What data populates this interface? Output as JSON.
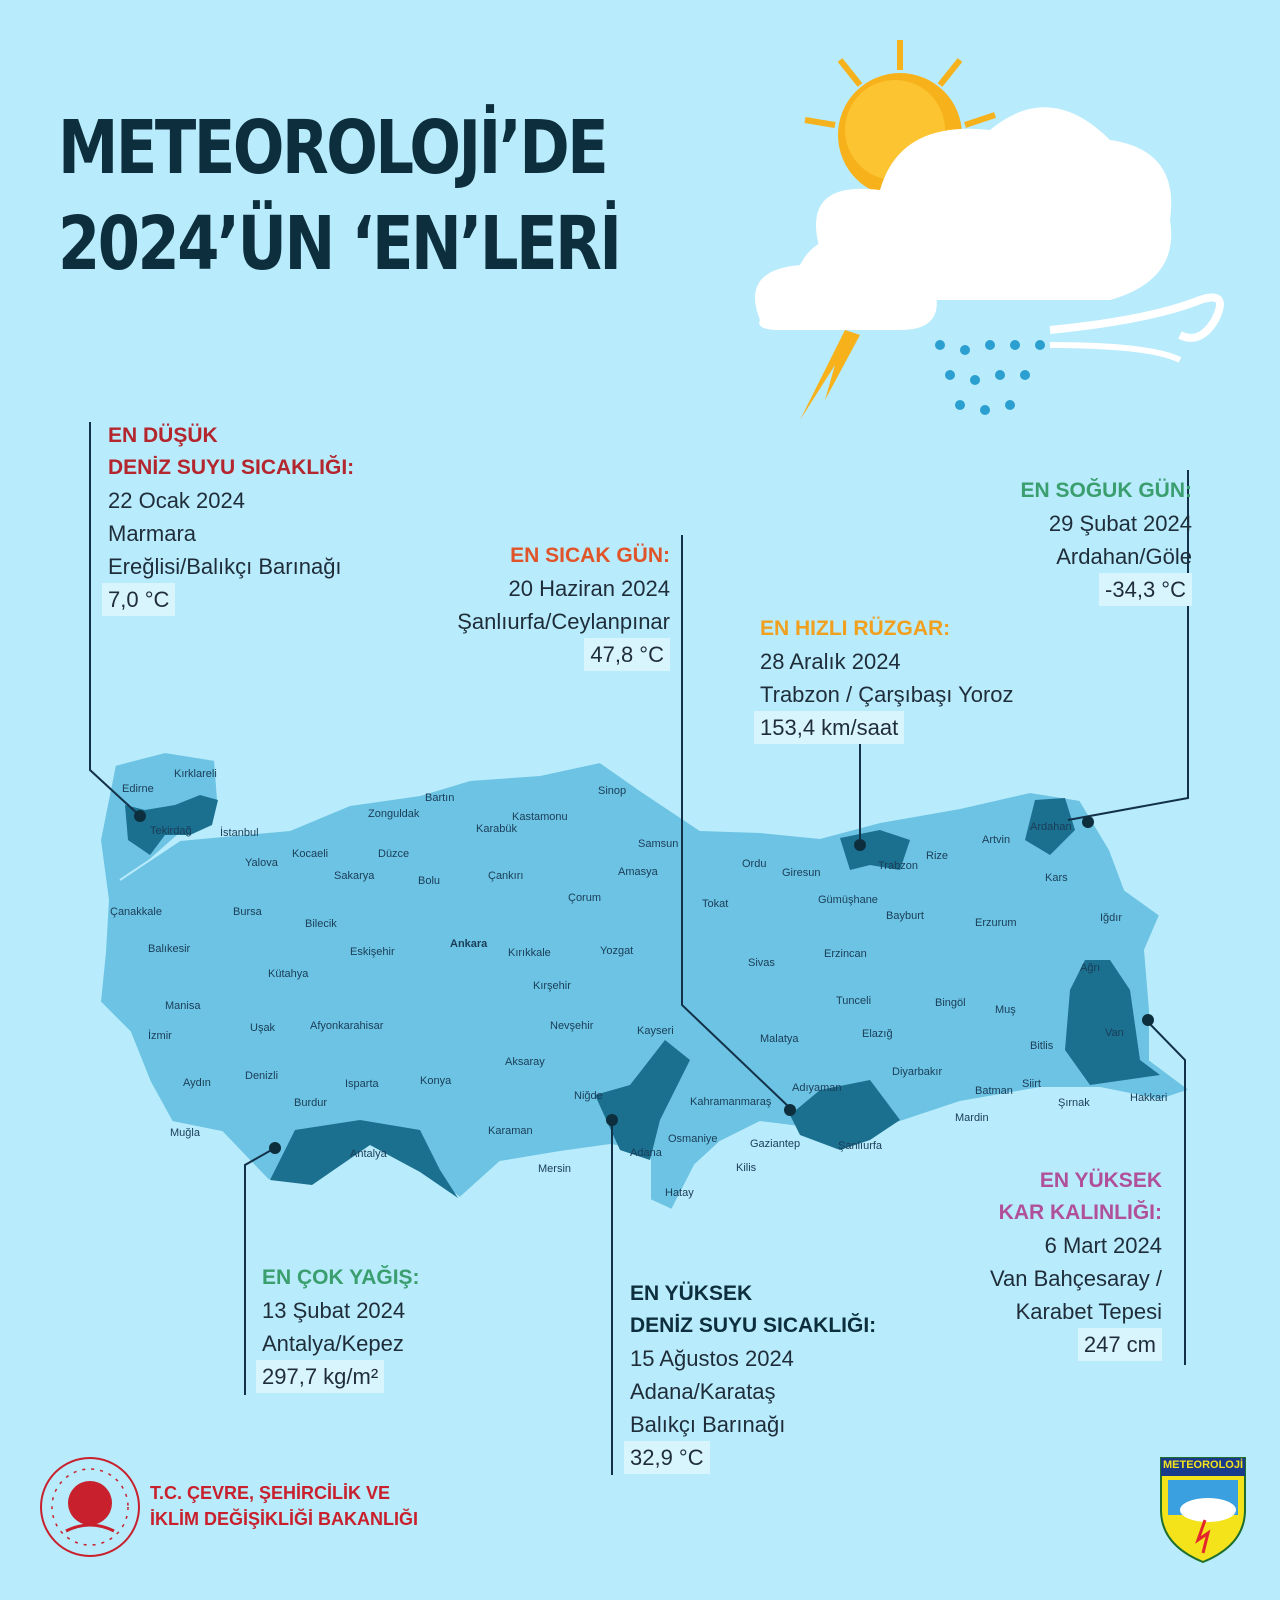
{
  "title": {
    "line1": "METEOROLOJİ’DE",
    "line2": "2024’ÜN ‘EN’LERİ"
  },
  "colors": {
    "background": "#b8ebfb",
    "map": "#6cc3e3",
    "highlight": "#1b6f8f",
    "red_heading": "#b3262e",
    "green_heading": "#3a9e6f",
    "orange_heading": "#f0a01e",
    "purple_heading": "#b0509a"
  },
  "records": [
    {
      "heading1": "EN DÜŞÜK",
      "heading2": "DENİZ SUYU SICAKLIĞI:",
      "date": "22 Ocak 2024",
      "place1": "Marmara",
      "place2": "Ereğlisi/Balıkçı Barınağı",
      "value": "7,0 °C"
    },
    {
      "heading": "EN SICAK GÜN:",
      "date": "20 Haziran 2024",
      "place": "Şanlıurfa/Ceylanpınar",
      "value": "47,8 °C"
    },
    {
      "heading": "EN SOĞUK GÜN:",
      "date": "29 Şubat 2024",
      "place": "Ardahan/Göle",
      "value": "-34,3 °C"
    },
    {
      "heading": "EN HIZLI RÜZGAR:",
      "date": "28 Aralık 2024",
      "place": "Trabzon / Çarşıbaşı Yoroz",
      "value": "153,4 km/saat"
    },
    {
      "heading": "EN ÇOK YAĞIŞ:",
      "date": "13 Şubat 2024",
      "place": "Antalya/Kepez",
      "value": "297,7 kg/m²"
    },
    {
      "heading1": "EN YÜKSEK",
      "heading2": "DENİZ SUYU SICAKLIĞI:",
      "date": "15 Ağustos 2024",
      "place1": "Adana/Karataş",
      "place2": "Balıkçı Barınağı",
      "value": "32,9 °C"
    },
    {
      "heading1": "EN YÜKSEK",
      "heading2": "KAR KALINLIĞI:",
      "date": "6 Mart 2024",
      "place1": "Van Bahçesaray /",
      "place2": "Karabet Tepesi",
      "value": "247 cm"
    }
  ],
  "cities": [
    "Edirne",
    "Kırklareli",
    "Tekirdağ",
    "İstanbul",
    "Yalova",
    "Kocaeli",
    "Sakarya",
    "Düzce",
    "Bolu",
    "Zonguldak",
    "Bartın",
    "Karabük",
    "Kastamonu",
    "Sinop",
    "Samsun",
    "Amasya",
    "Çorum",
    "Çankırı",
    "Ankara",
    "Kırıkkale",
    "Yozgat",
    "Çanakkale",
    "Bursa",
    "Bilecik",
    "Eskişehir",
    "Balıkesir",
    "Kütahya",
    "Manisa",
    "İzmir",
    "Uşak",
    "Afyonkarahisar",
    "Aydın",
    "Denizli",
    "Muğla",
    "Burdur",
    "Isparta",
    "Antalya",
    "Konya",
    "Karaman",
    "Aksaray",
    "Kırşehir",
    "Nevşehir",
    "Niğde",
    "Kayseri",
    "Mersin",
    "Adana",
    "Osmaniye",
    "Hatay",
    "Kahramanmaraş",
    "Gaziantep",
    "Kilis",
    "Adıyaman",
    "Şanlıurfa",
    "Malatya",
    "Sivas",
    "Tokat",
    "Ordu",
    "Giresun",
    "Trabzon",
    "Rize",
    "Gümüşhane",
    "Bayburt",
    "Erzincan",
    "Tunceli",
    "Elazığ",
    "Bingöl",
    "Diyarbakır",
    "Mardin",
    "Batman",
    "Siirt",
    "Şırnak",
    "Hakkari",
    "Van",
    "Bitlis",
    "Muş",
    "Ağrı",
    "Iğdır",
    "Kars",
    "Ardahan",
    "Artvin",
    "Erzurum"
  ],
  "footer": {
    "ministry_line1": "T.C. ÇEVRE, ŞEHİRCİLİK VE",
    "ministry_line2": "İKLİM DEĞİŞİKLİĞİ BAKANLIĞI",
    "logo_right": "METEOROLOJİ"
  }
}
